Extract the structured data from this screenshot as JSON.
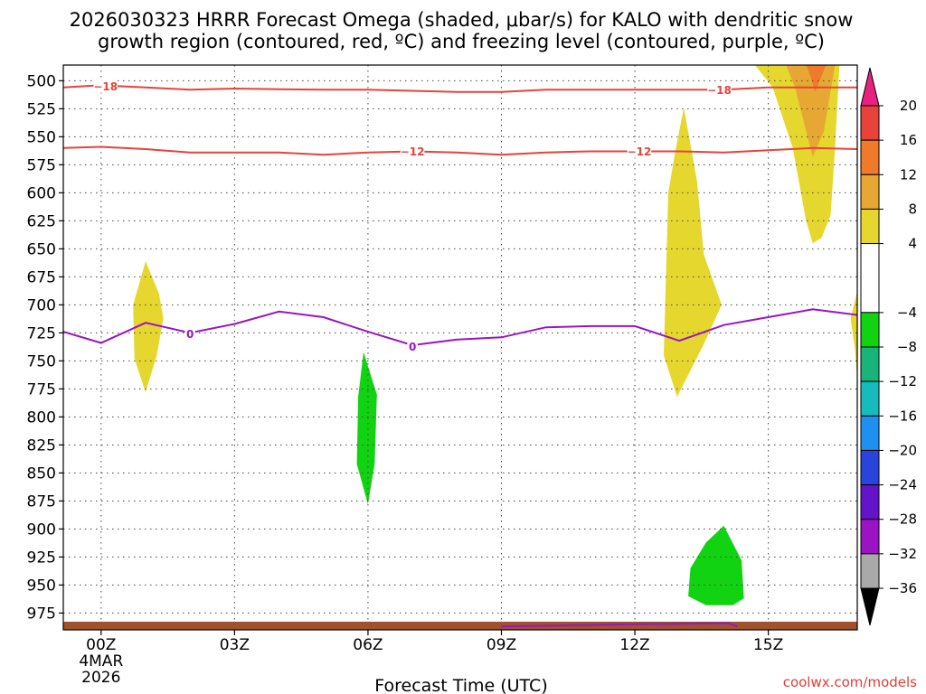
{
  "chart_data": {
    "type": "heatmap",
    "title_line1": "2026030323 HRRR Forecast Omega (shaded, μbar/s) for KALO with dendritic snow",
    "title_line2": "growth region (contoured, red, ºC) and freezing level (contoured, purple, ºC)",
    "xlabel": "Forecast Time (UTC)",
    "credit": "coolwx.com/models",
    "x_range_hours": [
      -0.85,
      17.0
    ],
    "x_ticks": [
      {
        "hour": 0,
        "label": "00Z",
        "sub1": "4MAR",
        "sub2": "2026"
      },
      {
        "hour": 3,
        "label": "03Z"
      },
      {
        "hour": 6,
        "label": "06Z"
      },
      {
        "hour": 9,
        "label": "09Z"
      },
      {
        "hour": 12,
        "label": "12Z"
      },
      {
        "hour": 15,
        "label": "15Z"
      }
    ],
    "y_range_mb": [
      990,
      486
    ],
    "y_ticks": [
      "500",
      "525",
      "550",
      "575",
      "600",
      "625",
      "650",
      "675",
      "700",
      "725",
      "750",
      "775",
      "800",
      "825",
      "850",
      "875",
      "900",
      "925",
      "950",
      "975"
    ],
    "colorbar": {
      "labels": [
        "20",
        "16",
        "12",
        "8",
        "4",
        "−4",
        "−8",
        "−12",
        "−16",
        "−20",
        "−24",
        "−28",
        "−32",
        "−36"
      ],
      "bands": [
        {
          "from": 20,
          "to": 16,
          "color": "#e8423a"
        },
        {
          "from": 16,
          "to": 12,
          "color": "#ee7a2a"
        },
        {
          "from": 12,
          "to": 8,
          "color": "#e6a832"
        },
        {
          "from": 8,
          "to": 4,
          "color": "#e6d72e"
        },
        {
          "from": 4,
          "to": -4,
          "color": "#ffffff"
        },
        {
          "from": -4,
          "to": -8,
          "color": "#12d312"
        },
        {
          "from": -8,
          "to": -12,
          "color": "#18b47a"
        },
        {
          "from": -12,
          "to": -16,
          "color": "#16bcbc"
        },
        {
          "from": -16,
          "to": -20,
          "color": "#1e90f0"
        },
        {
          "from": -20,
          "to": -24,
          "color": "#2844dc"
        },
        {
          "from": -24,
          "to": -28,
          "color": "#6414c8"
        },
        {
          "from": -28,
          "to": -32,
          "color": "#9a14c4"
        },
        {
          "from": -32,
          "to": -36,
          "color": "#a9a9a9"
        }
      ],
      "top_arrow_color": "#e8207e",
      "bottom_arrow_color": "#000000"
    },
    "contours": [
      {
        "name": "dgz-minus18",
        "color": "#e8423a",
        "label": "−18",
        "points": [
          [
            -0.85,
            506
          ],
          [
            0,
            504
          ],
          [
            1,
            506
          ],
          [
            2,
            508
          ],
          [
            3,
            507
          ],
          [
            4,
            507.5
          ],
          [
            5,
            508
          ],
          [
            6,
            508
          ],
          [
            7,
            509
          ],
          [
            8,
            510
          ],
          [
            9,
            510
          ],
          [
            10,
            508
          ],
          [
            11,
            508
          ],
          [
            12,
            508
          ],
          [
            13,
            508
          ],
          [
            14,
            508
          ],
          [
            15,
            506
          ],
          [
            16,
            506
          ],
          [
            17,
            506
          ]
        ],
        "label_positions": [
          [
            0.1,
            505
          ],
          [
            13.9,
            508
          ]
        ]
      },
      {
        "name": "dgz-minus12",
        "color": "#e8423a",
        "label": "−12",
        "points": [
          [
            -0.85,
            560
          ],
          [
            0,
            559
          ],
          [
            1,
            561
          ],
          [
            2,
            564
          ],
          [
            3,
            564
          ],
          [
            4,
            564
          ],
          [
            5,
            566
          ],
          [
            6,
            564
          ],
          [
            7,
            563
          ],
          [
            8,
            564
          ],
          [
            9,
            566
          ],
          [
            10,
            564
          ],
          [
            11,
            563
          ],
          [
            12,
            563
          ],
          [
            13,
            563
          ],
          [
            14,
            564
          ],
          [
            15,
            562
          ],
          [
            16,
            560
          ],
          [
            17,
            561
          ]
        ],
        "label_positions": [
          [
            7,
            563
          ],
          [
            12.1,
            563
          ]
        ]
      },
      {
        "name": "freezing-level-0",
        "color": "#9a14c4",
        "label": "0",
        "points": [
          [
            -0.85,
            724
          ],
          [
            0,
            734
          ],
          [
            1,
            716
          ],
          [
            2,
            725
          ],
          [
            3,
            717
          ],
          [
            4,
            706
          ],
          [
            5,
            711
          ],
          [
            6,
            724
          ],
          [
            7,
            736
          ],
          [
            8,
            731
          ],
          [
            9,
            729
          ],
          [
            10,
            720
          ],
          [
            11,
            719
          ],
          [
            12,
            719
          ],
          [
            13,
            732
          ],
          [
            14,
            718
          ],
          [
            15,
            711
          ],
          [
            16,
            704
          ],
          [
            17,
            709
          ]
        ],
        "label_positions": [
          [
            2,
            726
          ],
          [
            7,
            737
          ]
        ]
      },
      {
        "name": "freezing-level-surface",
        "color": "#9a14c4",
        "label": "",
        "points": [
          [
            9,
            987
          ],
          [
            12,
            985
          ],
          [
            14.1,
            984
          ],
          [
            14.3,
            987
          ]
        ],
        "label_positions": []
      }
    ],
    "shaded_regions": [
      {
        "name": "ascent-yellow-1",
        "value_band": "4 to 8",
        "color": "#e6d72e",
        "points": [
          [
            1.0,
            661
          ],
          [
            1.3,
            690
          ],
          [
            1.4,
            712
          ],
          [
            1.25,
            745
          ],
          [
            1.0,
            778
          ],
          [
            0.75,
            748
          ],
          [
            0.72,
            700
          ]
        ]
      },
      {
        "name": "ascent-yellow-2",
        "value_band": "4 to 8",
        "color": "#e6d72e",
        "points": [
          [
            13.1,
            524
          ],
          [
            13.4,
            590
          ],
          [
            13.55,
            655
          ],
          [
            13.95,
            700
          ],
          [
            13.55,
            735
          ],
          [
            12.95,
            782
          ],
          [
            12.65,
            745
          ],
          [
            12.75,
            600
          ],
          [
            12.9,
            565
          ]
        ]
      },
      {
        "name": "ascent-yellow-3",
        "value_band": "4 to 8",
        "color": "#e6d72e",
        "points": [
          [
            14.7,
            486
          ],
          [
            16.6,
            486
          ],
          [
            16.5,
            560
          ],
          [
            16.4,
            620
          ],
          [
            16.2,
            640
          ],
          [
            16.0,
            645
          ],
          [
            15.85,
            625
          ],
          [
            15.55,
            560
          ],
          [
            15.1,
            506
          ]
        ]
      },
      {
        "name": "ascent-orange-3",
        "value_band": "8 to 12",
        "color": "#e6a832",
        "points": [
          [
            15.4,
            486
          ],
          [
            16.5,
            486
          ],
          [
            16.25,
            545
          ],
          [
            16.0,
            568
          ],
          [
            15.85,
            545
          ],
          [
            15.6,
            506
          ]
        ]
      },
      {
        "name": "ascent-darkorange-3",
        "value_band": "12 to 16",
        "color": "#ee7a2a",
        "points": [
          [
            15.85,
            486
          ],
          [
            16.3,
            486
          ],
          [
            16.05,
            510
          ],
          [
            15.95,
            496
          ]
        ]
      },
      {
        "name": "ascent-yellow-edge",
        "value_band": "4 to 8",
        "color": "#e6d72e",
        "points": [
          [
            17.0,
            688
          ],
          [
            16.85,
            712
          ],
          [
            16.95,
            740
          ],
          [
            17.0,
            765
          ]
        ]
      },
      {
        "name": "descent-green-1",
        "value_band": "-4 to -8",
        "color": "#12d312",
        "points": [
          [
            5.9,
            742
          ],
          [
            6.2,
            780
          ],
          [
            6.15,
            842
          ],
          [
            6.0,
            878
          ],
          [
            5.75,
            842
          ],
          [
            5.78,
            782
          ]
        ]
      },
      {
        "name": "descent-green-2",
        "value_band": "-4 to -8",
        "color": "#12d312",
        "points": [
          [
            14.0,
            897
          ],
          [
            14.4,
            928
          ],
          [
            14.45,
            962
          ],
          [
            14.2,
            968
          ],
          [
            13.6,
            968
          ],
          [
            13.2,
            960
          ],
          [
            13.25,
            935
          ],
          [
            13.6,
            912
          ]
        ]
      }
    ],
    "terrain_color": "#a0522d"
  }
}
